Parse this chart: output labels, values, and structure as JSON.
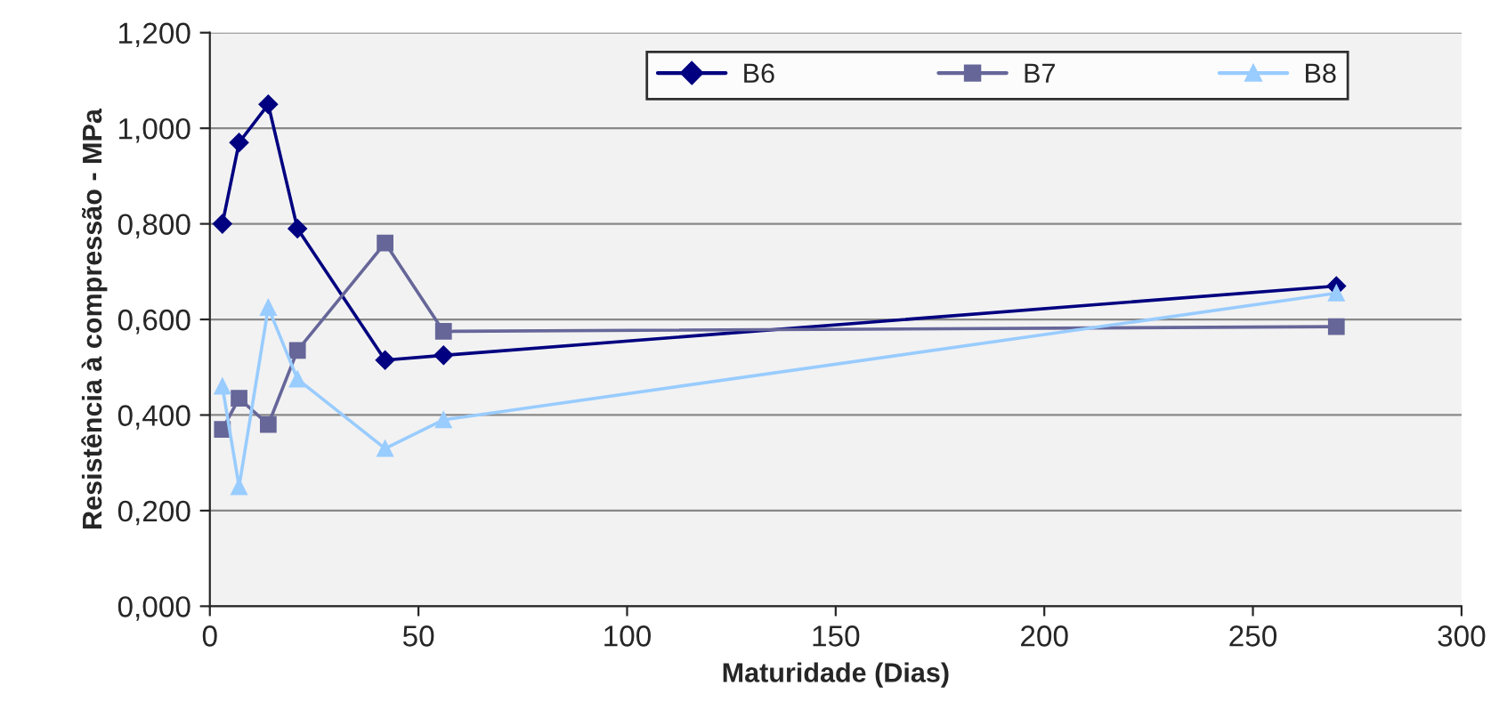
{
  "chart_data": {
    "type": "line",
    "xlabel": "Maturidade (Dias)",
    "ylabel": "Resistência à compressão - MPa",
    "x": [
      3,
      7,
      14,
      21,
      42,
      56,
      270
    ],
    "series": [
      {
        "name": "B6",
        "color": "#000080",
        "marker": "diamond",
        "values": [
          0.8,
          0.97,
          1.05,
          0.79,
          0.515,
          0.525,
          0.67
        ]
      },
      {
        "name": "B7",
        "color": "#666699",
        "marker": "square",
        "values": [
          0.37,
          0.435,
          0.38,
          0.535,
          0.76,
          0.575,
          0.585
        ]
      },
      {
        "name": "B8",
        "color": "#99ccff",
        "marker": "triangle",
        "values": [
          0.46,
          0.25,
          0.625,
          0.475,
          0.33,
          0.39,
          0.655
        ]
      }
    ],
    "xlim": [
      0,
      300
    ],
    "xticks": [
      0,
      50,
      100,
      150,
      200,
      250,
      300
    ],
    "ylim": [
      0,
      1.2
    ],
    "yticks": [
      {
        "value": 0,
        "label": "0,000"
      },
      {
        "value": 0.2,
        "label": "0,200"
      },
      {
        "value": 0.4,
        "label": "0,400"
      },
      {
        "value": 0.6,
        "label": "0,600"
      },
      {
        "value": 0.8,
        "label": "0,800"
      },
      {
        "value": 1.0,
        "label": "1,000"
      },
      {
        "value": 1.2,
        "label": "1,200"
      }
    ],
    "grid": "y",
    "legend": "top right",
    "line_style": "solid"
  }
}
